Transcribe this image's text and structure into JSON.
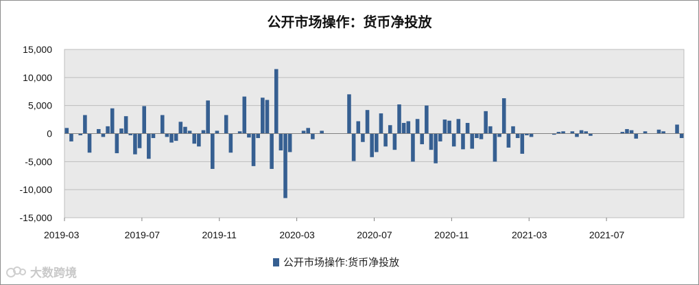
{
  "chart_data": {
    "type": "bar",
    "title": "公开市场操作：货币净投放",
    "legend": {
      "label": "公开市场操作:货币净投放",
      "position": "bottom"
    },
    "ylim": [
      -15000,
      15000
    ],
    "yticks": [
      "15,000",
      "10,000",
      "5,000",
      "0",
      "-5,000",
      "-10,000",
      "-15,000"
    ],
    "ytick_values": [
      15000,
      10000,
      5000,
      0,
      -5000,
      -10000,
      -15000
    ],
    "xticks": [
      "2019-03",
      "2019-07",
      "2019-11",
      "2020-03",
      "2020-07",
      "2020-11",
      "2021-03",
      "2021-07"
    ],
    "grid": true,
    "color": "#365f91",
    "series": [
      {
        "values": [
          1000,
          -1400,
          0,
          -300,
          3300,
          -3400,
          0,
          800,
          -600,
          1300,
          4500,
          -3500,
          900,
          3100,
          -300,
          -3700,
          -2600,
          4900,
          -4500,
          -800,
          0,
          3300,
          -600,
          -1600,
          -1300,
          2100,
          1200,
          500,
          -1800,
          -2300,
          600,
          5900,
          -6300,
          500,
          0,
          3300,
          -3400,
          0,
          400,
          6600,
          -700,
          -5800,
          -800,
          6400,
          6000,
          -6300,
          11500,
          -3000,
          -11500,
          -3300,
          0,
          0,
          500,
          1000,
          -1000,
          0,
          500,
          0,
          0,
          0,
          0,
          0,
          7000,
          -4900,
          2200,
          -1500,
          4200,
          -4200,
          -3300,
          3600,
          -2300,
          1500,
          -2900,
          5200,
          1900,
          2200,
          -5000,
          2600,
          -1900,
          5000,
          -2900,
          -5300,
          -1400,
          2500,
          2300,
          -2300,
          2600,
          -2800,
          1900,
          -2700,
          -800,
          -1000,
          4000,
          1300,
          -5000,
          -600,
          6300,
          -2500,
          1300,
          -800,
          -3600,
          -300,
          -600,
          0,
          0,
          0,
          0,
          -200,
          300,
          400,
          0,
          400,
          -600,
          600,
          400,
          -400,
          0,
          0,
          0,
          0,
          0,
          0,
          300,
          800,
          600,
          -900,
          0,
          400,
          0,
          0,
          700,
          400,
          0,
          0,
          1600,
          -800
        ]
      }
    ]
  },
  "watermark": "大数跨境"
}
